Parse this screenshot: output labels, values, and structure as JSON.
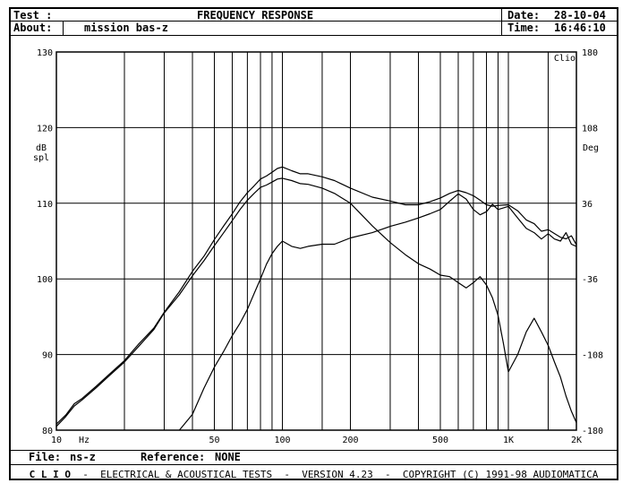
{
  "header": {
    "test_label": "Test :",
    "title": "FREQUENCY RESPONSE",
    "date_label": "Date:",
    "date_value": "28-10-04",
    "about_label": "About:",
    "about_value": "mission bas-z",
    "time_label": "Time:",
    "time_value": "16:46:10"
  },
  "footer": {
    "file_label": "File:",
    "file_value": "ns-z",
    "reference_label": "Reference:",
    "reference_value": "NONE",
    "clio_brand": "C L I O",
    "clio_tagline": "-  ELECTRICAL & ACOUSTICAL TESTS  -  VERSION 4.23  -  COPYRIGHT (C) 1991-98 AUDIOMATICA"
  },
  "chart_data": {
    "type": "line",
    "title": "FREQUENCY RESPONSE",
    "xlabel": "Hz",
    "ylabel": "dB spl",
    "y2label": "Deg",
    "corner_label": "Clio",
    "x_scale": "log",
    "xlim": [
      10,
      2000
    ],
    "ylim": [
      80,
      130
    ],
    "y2lim": [
      -180,
      180
    ],
    "grid": true,
    "x_ticks": [
      {
        "value": 10,
        "label": "10"
      },
      {
        "value": 50,
        "label": "50"
      },
      {
        "value": 100,
        "label": "100"
      },
      {
        "value": 200,
        "label": "200"
      },
      {
        "value": 500,
        "label": "500"
      },
      {
        "value": 1000,
        "label": "1K"
      },
      {
        "value": 2000,
        "label": "2K"
      }
    ],
    "x_grid": [
      20,
      30,
      40,
      50,
      60,
      70,
      80,
      90,
      100,
      150,
      200,
      300,
      400,
      500,
      600,
      700,
      800,
      900,
      1000,
      1500,
      2000
    ],
    "y_ticks": [
      80,
      90,
      100,
      110,
      120,
      130
    ],
    "y2_ticks": [
      {
        "value": -180,
        "label": "-180"
      },
      {
        "value": -108,
        "label": "-108"
      },
      {
        "value": -36,
        "label": "-36"
      },
      {
        "value": 36,
        "label": "36"
      },
      {
        "value": 108,
        "label": "108"
      },
      {
        "value": 180,
        "label": "180"
      }
    ],
    "series": [
      {
        "axis": "left",
        "x": [
          10,
          11,
          12,
          13,
          15,
          17,
          20,
          23,
          27,
          30,
          35,
          40,
          45,
          50,
          55,
          60,
          65,
          70,
          75,
          80,
          85,
          90,
          95,
          100,
          110,
          120,
          130,
          150,
          170,
          200,
          250,
          300,
          350,
          400,
          450,
          500,
          550,
          600,
          650,
          700,
          750,
          800,
          850,
          900,
          1000,
          1100,
          1200,
          1300,
          1400,
          1500,
          1600,
          1700,
          1800,
          1900,
          2000
        ],
        "y": [
          80.8,
          82.0,
          83.5,
          84.2,
          85.8,
          87.3,
          89.2,
          91.3,
          93.5,
          95.6,
          98.3,
          101.0,
          103.0,
          105.2,
          107.0,
          108.6,
          110.2,
          111.4,
          112.3,
          113.2,
          113.6,
          114.1,
          114.6,
          114.8,
          114.3,
          113.9,
          113.9,
          113.5,
          113.0,
          112.0,
          110.8,
          110.3,
          109.8,
          109.8,
          110.2,
          110.7,
          111.3,
          111.7,
          111.4,
          111.0,
          110.4,
          109.8,
          109.6,
          109.7,
          109.8,
          109.0,
          107.8,
          107.3,
          106.3,
          106.5,
          106.0,
          105.5,
          105.3,
          105.7,
          104.5
        ]
      },
      {
        "axis": "left",
        "x": [
          10,
          11,
          12,
          13,
          15,
          17,
          20,
          23,
          27,
          30,
          35,
          40,
          45,
          50,
          55,
          60,
          65,
          70,
          75,
          80,
          85,
          90,
          95,
          100,
          110,
          120,
          130,
          150,
          170,
          200,
          250,
          300,
          350,
          400,
          450,
          500,
          550,
          600,
          650,
          700,
          750,
          800,
          850,
          900,
          950,
          1000,
          1100,
          1200,
          1300,
          1400,
          1500,
          1600,
          1700,
          1800,
          1900,
          2000
        ],
        "y": [
          80.5,
          81.8,
          83.2,
          84.0,
          85.6,
          87.1,
          89.0,
          91.0,
          93.3,
          95.5,
          97.9,
          100.4,
          102.4,
          104.4,
          106.1,
          107.7,
          109.2,
          110.4,
          111.3,
          112.1,
          112.4,
          112.8,
          113.2,
          113.3,
          113.0,
          112.6,
          112.5,
          112.0,
          111.3,
          110.0,
          107.0,
          104.8,
          103.2,
          102.0,
          101.3,
          100.5,
          100.3,
          99.5,
          98.8,
          99.5,
          100.3,
          99.2,
          97.5,
          95.2,
          91.5,
          87.7,
          90.0,
          93.0,
          94.8,
          93.0,
          91.2,
          89.0,
          87.0,
          84.5,
          82.5,
          81.0
        ]
      },
      {
        "axis": "right",
        "x": [
          35,
          40,
          45,
          50,
          55,
          60,
          65,
          70,
          75,
          80,
          85,
          90,
          95,
          100,
          110,
          120,
          130,
          150,
          170,
          200,
          250,
          300,
          350,
          400,
          450,
          500,
          550,
          600,
          650,
          700,
          750,
          800,
          850,
          900,
          1000,
          1100,
          1200,
          1300,
          1400,
          1500,
          1600,
          1700,
          1800,
          1900,
          2000
        ],
        "y": [
          -180,
          -165,
          -140,
          -120,
          -105,
          -90,
          -78,
          -65,
          -50,
          -36,
          -22,
          -12,
          -5,
          0,
          -5,
          -7,
          -5,
          -3,
          -3,
          3,
          8,
          14,
          18,
          22,
          26,
          30,
          38,
          45,
          40,
          30,
          25,
          28,
          35,
          30,
          33,
          22,
          12,
          8,
          2,
          7,
          2,
          0,
          8,
          -3,
          -5
        ]
      }
    ]
  }
}
